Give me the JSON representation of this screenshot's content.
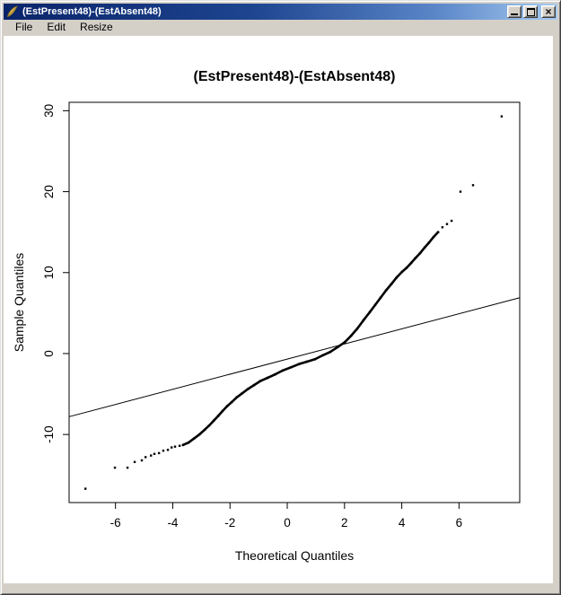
{
  "window": {
    "title": "(EstPresent48)-(EstAbsent48)",
    "icon": "r-graphics-feather",
    "controls": {
      "minimize_label": "minimize",
      "maximize_label": "maximize",
      "close_label": "close"
    }
  },
  "menu": {
    "items": [
      {
        "label": "File"
      },
      {
        "label": "Edit"
      },
      {
        "label": "Resize"
      }
    ]
  },
  "chart_data": {
    "type": "scatter",
    "subtype": "normal-qq-plot",
    "title": "(EstPresent48)-(EstAbsent48)",
    "xlabel": "Theoretical Quantiles",
    "ylabel": "Sample Quantiles",
    "x_ticks": [
      -6,
      -4,
      -2,
      0,
      2,
      4,
      6
    ],
    "y_ticks": [
      -10,
      0,
      10,
      20,
      30
    ],
    "xlim": [
      -7.62,
      8.12
    ],
    "ylim": [
      -18.41,
      31.04
    ],
    "grid": false,
    "background": "#FFFFFF",
    "point_color": "#000000",
    "line_color": "#000000",
    "reference_line": {
      "x1": -7.62,
      "y1": -7.8,
      "x2": 8.12,
      "y2": 6.9
    },
    "points": [
      [
        -7.05,
        -16.7,
        0
      ],
      [
        -6.02,
        -14.1,
        0
      ],
      [
        -5.58,
        -14.1,
        0
      ],
      [
        -5.33,
        -13.4,
        0
      ],
      [
        -5.08,
        -13.2,
        0
      ],
      [
        -4.95,
        -12.8,
        0
      ],
      [
        -4.76,
        -12.6,
        0
      ],
      [
        -4.64,
        -12.4,
        0
      ],
      [
        -4.48,
        -12.3,
        0
      ],
      [
        -4.33,
        -12.0,
        0
      ],
      [
        -4.17,
        -11.9,
        0
      ],
      [
        -4.04,
        -11.6,
        0
      ],
      [
        -3.92,
        -11.5,
        0
      ],
      [
        -3.76,
        -11.4,
        0
      ],
      [
        -3.64,
        -11.3,
        0
      ],
      [
        -3.45,
        -11.0,
        1
      ],
      [
        -3.26,
        -10.5,
        1
      ],
      [
        -3.07,
        -10.0,
        1
      ],
      [
        -2.88,
        -9.4,
        1
      ],
      [
        -2.73,
        -8.9,
        1
      ],
      [
        -2.57,
        -8.3,
        1
      ],
      [
        -2.41,
        -7.7,
        1
      ],
      [
        -2.26,
        -7.1,
        1
      ],
      [
        -2.1,
        -6.5,
        1
      ],
      [
        -1.94,
        -6.0,
        1
      ],
      [
        -1.76,
        -5.4,
        1
      ],
      [
        -1.57,
        -4.9,
        1
      ],
      [
        -1.38,
        -4.4,
        1
      ],
      [
        -1.16,
        -3.9,
        1
      ],
      [
        -0.94,
        -3.4,
        1
      ],
      [
        -0.69,
        -3.0,
        1
      ],
      [
        -0.44,
        -2.6,
        1
      ],
      [
        -0.16,
        -2.1,
        1
      ],
      [
        0.13,
        -1.7,
        1
      ],
      [
        0.41,
        -1.3,
        1
      ],
      [
        0.69,
        -1.0,
        1
      ],
      [
        0.97,
        -0.7,
        1
      ],
      [
        1.25,
        -0.2,
        1
      ],
      [
        1.5,
        0.2,
        1
      ],
      [
        1.76,
        0.8,
        1
      ],
      [
        2.01,
        1.4,
        1
      ],
      [
        2.23,
        2.2,
        1
      ],
      [
        2.45,
        3.1,
        1
      ],
      [
        2.66,
        4.1,
        1
      ],
      [
        2.88,
        5.1,
        1
      ],
      [
        3.07,
        6.0,
        1
      ],
      [
        3.26,
        6.9,
        1
      ],
      [
        3.45,
        7.8,
        1
      ],
      [
        3.64,
        8.6,
        1
      ],
      [
        3.82,
        9.4,
        1
      ],
      [
        4.01,
        10.1,
        1
      ],
      [
        4.17,
        10.6,
        1
      ],
      [
        4.33,
        11.2,
        1
      ],
      [
        4.48,
        11.8,
        1
      ],
      [
        4.64,
        12.4,
        1
      ],
      [
        4.8,
        13.1,
        1
      ],
      [
        4.95,
        13.7,
        1
      ],
      [
        5.11,
        14.4,
        1
      ],
      [
        5.27,
        15.0,
        1
      ],
      [
        5.42,
        15.6,
        0
      ],
      [
        5.58,
        16.0,
        0
      ],
      [
        5.74,
        16.4,
        0
      ],
      [
        6.05,
        20.0,
        0
      ],
      [
        6.49,
        20.8,
        0
      ],
      [
        7.49,
        29.3,
        0
      ]
    ]
  }
}
